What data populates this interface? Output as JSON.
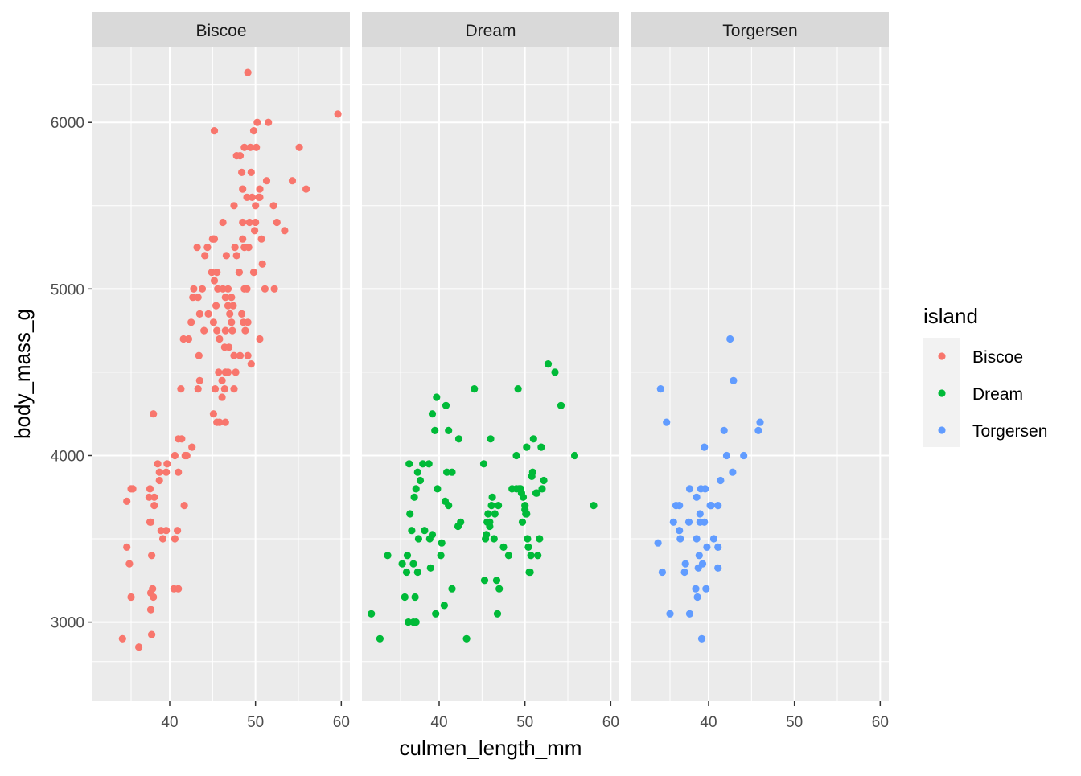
{
  "chart_data": {
    "type": "scatter",
    "facet_var": "island",
    "facets": [
      "Biscoe",
      "Dream",
      "Torgersen"
    ],
    "xlabel": "culmen_length_mm",
    "ylabel": "body_mass_g",
    "xlim": [
      31,
      61
    ],
    "ylim": [
      2525,
      6450
    ],
    "x_ticks": [
      40,
      50,
      60
    ],
    "x_tick_labels": [
      "40",
      "50",
      "60"
    ],
    "y_ticks": [
      3000,
      4000,
      5000,
      6000
    ],
    "y_tick_labels": [
      "3000",
      "4000",
      "5000",
      "6000"
    ],
    "grid": true,
    "legend": {
      "title": "island",
      "placement": "right",
      "entries": [
        "Biscoe",
        "Dream",
        "Torgersen"
      ]
    },
    "colors": {
      "Biscoe": "#F8766D",
      "Dream": "#00BA38",
      "Torgersen": "#619CFF",
      "panel_background": "#EBEBEB",
      "strip_background": "#D9D9D9",
      "grid": "#FFFFFF"
    },
    "series": [
      {
        "name": "Biscoe",
        "x": [
          34.5,
          35.0,
          35.0,
          35.3,
          35.5,
          35.5,
          35.7,
          36.4,
          37.6,
          37.7,
          37.7,
          37.8,
          37.8,
          37.8,
          37.9,
          37.9,
          38.0,
          38.1,
          38.1,
          38.2,
          38.2,
          38.6,
          38.8,
          38.8,
          39.0,
          39.2,
          39.6,
          39.6,
          39.7,
          40.5,
          40.6,
          40.6,
          40.9,
          41.0,
          41.0,
          41.0,
          41.3,
          41.4,
          41.6,
          41.7,
          41.8,
          42.0,
          42.2,
          42.5,
          42.6,
          42.7,
          42.8,
          43.2,
          43.3,
          43.4,
          43.5,
          43.5,
          43.8,
          44.0,
          44.1,
          44.4,
          44.5,
          44.9,
          45.0,
          45.1,
          45.1,
          45.2,
          45.2,
          45.3,
          45.4,
          45.5,
          45.5,
          45.5,
          45.6,
          45.7,
          45.8,
          45.8,
          46.1,
          46.1,
          46.2,
          46.2,
          46.4,
          46.4,
          46.5,
          46.5,
          46.5,
          46.6,
          46.8,
          46.8,
          46.9,
          47.0,
          47.2,
          47.2,
          47.3,
          47.4,
          47.5,
          47.5,
          47.6,
          47.7,
          47.8,
          47.8,
          48.1,
          48.2,
          48.2,
          48.4,
          48.4,
          48.5,
          48.5,
          48.6,
          48.7,
          48.7,
          48.7,
          48.8,
          49.0,
          49.0,
          49.1,
          49.1,
          49.1,
          49.2,
          49.3,
          49.4,
          49.5,
          49.5,
          49.6,
          49.8,
          49.8,
          49.9,
          50.0,
          50.0,
          50.1,
          50.2,
          50.4,
          50.5,
          50.5,
          50.7,
          50.8,
          51.1,
          51.3,
          51.5,
          52.1,
          52.2,
          52.5,
          53.4,
          54.3,
          55.1,
          55.9,
          59.6,
          45.2,
          46.8,
          47.5,
          43.3,
          45.1,
          46.5,
          50.5,
          48.5
        ],
        "y": [
          2900,
          3725,
          3450,
          3350,
          3800,
          3150,
          3800,
          2850,
          3750,
          3600,
          3800,
          3600,
          3075,
          3175,
          3400,
          2925,
          3200,
          3150,
          4250,
          3700,
          3750,
          3950,
          3900,
          3850,
          3550,
          3500,
          3550,
          3900,
          3950,
          3200,
          4000,
          3500,
          3550,
          3200,
          3900,
          4100,
          4400,
          4100,
          4700,
          3700,
          4000,
          4000,
          4700,
          4800,
          4050,
          4950,
          5000,
          5250,
          4400,
          4600,
          4450,
          4850,
          5000,
          4750,
          5200,
          5250,
          4850,
          5100,
          5300,
          4250,
          4800,
          5050,
          5300,
          4400,
          4900,
          4200,
          4750,
          5100,
          5000,
          4500,
          4700,
          4200,
          4350,
          4450,
          5000,
          5400,
          4650,
          4400,
          4750,
          4500,
          4200,
          5200,
          5000,
          4900,
          4650,
          4850,
          4950,
          4800,
          4750,
          4900,
          5500,
          4600,
          5250,
          4500,
          5200,
          5800,
          5100,
          5800,
          4600,
          4850,
          5700,
          5300,
          5600,
          4800,
          5000,
          5250,
          5850,
          4750,
          5000,
          5550,
          6300,
          4800,
          4600,
          5250,
          5400,
          5850,
          5700,
          4550,
          5550,
          5950,
          5100,
          5350,
          5500,
          5400,
          5850,
          6000,
          5550,
          4700,
          5600,
          5300,
          5150,
          5000,
          5650,
          6000,
          5500,
          5000,
          5400,
          5350,
          5650,
          5850,
          5600,
          6050,
          5950,
          4500,
          4400,
          4950,
          5300,
          4950,
          5550,
          5400
        ]
      },
      {
        "name": "Dream",
        "x": [
          32.1,
          33.1,
          34.0,
          35.7,
          36.0,
          36.2,
          36.3,
          36.4,
          36.5,
          36.6,
          36.8,
          37.0,
          37.0,
          37.1,
          37.2,
          37.3,
          37.3,
          37.5,
          37.5,
          37.6,
          37.8,
          38.1,
          38.3,
          38.8,
          38.9,
          39.0,
          39.2,
          39.2,
          39.5,
          39.6,
          39.7,
          39.8,
          40.2,
          40.3,
          40.6,
          40.7,
          40.8,
          40.9,
          41.1,
          41.1,
          41.5,
          41.5,
          42.2,
          42.3,
          42.5,
          43.2,
          44.1,
          45.2,
          45.3,
          45.4,
          45.5,
          45.6,
          45.7,
          45.9,
          46.0,
          46.1,
          46.2,
          46.4,
          46.5,
          46.7,
          46.8,
          46.9,
          47.0,
          47.5,
          48.1,
          48.5,
          49.0,
          49.2,
          49.5,
          49.6,
          49.7,
          49.8,
          50.0,
          50.1,
          50.2,
          50.3,
          50.4,
          50.5,
          50.6,
          50.7,
          50.8,
          50.9,
          51.0,
          51.3,
          51.4,
          51.5,
          51.7,
          51.9,
          52.0,
          52.2,
          52.7,
          53.5,
          54.2,
          55.8,
          58.0,
          49.3,
          50.2,
          49.0,
          45.9,
          50.0
        ],
        "y": [
          3050,
          2900,
          3400,
          3350,
          3150,
          3300,
          3400,
          3000,
          3950,
          3650,
          3550,
          3000,
          3350,
          3750,
          3150,
          3800,
          3000,
          3300,
          3900,
          3500,
          3850,
          3950,
          3550,
          3950,
          3500,
          3325,
          4250,
          3525,
          4150,
          3050,
          4350,
          3800,
          3400,
          3475,
          3100,
          3725,
          4300,
          3900,
          4150,
          3700,
          3900,
          3200,
          3575,
          4100,
          3600,
          2900,
          4400,
          3950,
          3250,
          3500,
          3525,
          3600,
          3650,
          3575,
          4100,
          3700,
          3750,
          3500,
          3650,
          3250,
          3050,
          3700,
          3200,
          3450,
          3400,
          3800,
          4000,
          4400,
          3800,
          3775,
          3600,
          3750,
          3675,
          3650,
          4050,
          3500,
          3450,
          3300,
          3300,
          3400,
          3875,
          3900,
          4100,
          3775,
          3775,
          3400,
          3500,
          4050,
          3800,
          3850,
          4550,
          4500,
          4300,
          4000,
          3700,
          3800,
          3650,
          3800,
          3600,
          3700
        ]
      },
      {
        "name": "Torgersen",
        "x": [
          34.1,
          34.4,
          34.6,
          35.1,
          35.5,
          35.9,
          36.2,
          36.6,
          36.6,
          36.7,
          37.2,
          37.3,
          37.7,
          37.8,
          38.5,
          38.6,
          38.6,
          38.7,
          38.8,
          38.9,
          39.0,
          39.1,
          39.2,
          39.3,
          39.5,
          39.5,
          39.6,
          39.7,
          39.8,
          40.2,
          40.3,
          40.6,
          41.1,
          41.1,
          41.1,
          41.4,
          41.8,
          42.1,
          42.5,
          42.8,
          42.9,
          44.1,
          45.8,
          46.0,
          39.0,
          37.8
        ],
        "y": [
          3475,
          4400,
          3300,
          4200,
          3050,
          3600,
          3700,
          3700,
          3550,
          3500,
          3300,
          3350,
          3600,
          3800,
          3200,
          3750,
          3500,
          3150,
          3325,
          3400,
          3650,
          3800,
          2900,
          3350,
          4050,
          3600,
          3800,
          3200,
          3450,
          3700,
          3700,
          3500,
          3450,
          3700,
          3325,
          3850,
          4150,
          4000,
          4700,
          3900,
          4450,
          4000,
          4150,
          4200,
          3600,
          3050
        ]
      }
    ]
  }
}
